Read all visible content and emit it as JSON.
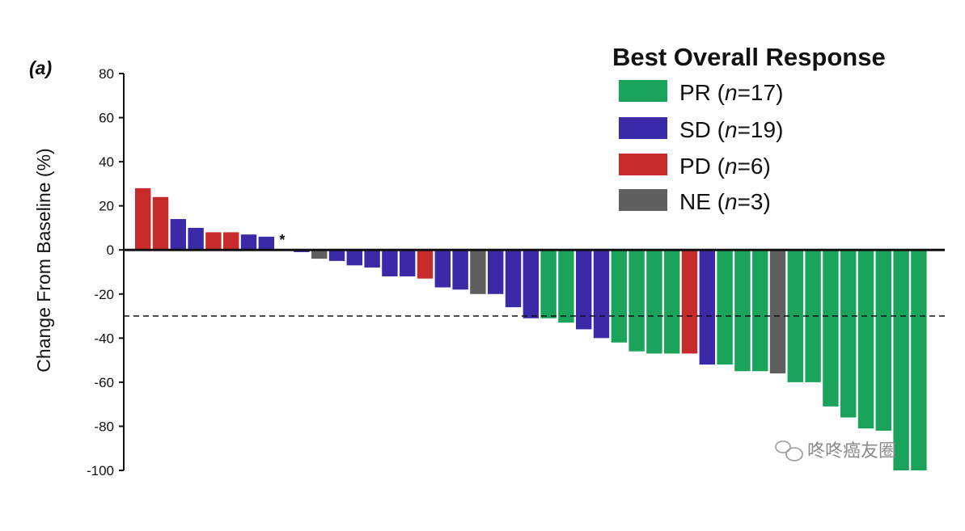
{
  "chart_data": {
    "type": "bar",
    "panel_label": "(a)",
    "ylabel": "Change From Baseline (%)",
    "xlabel": "",
    "ylim": [
      -100,
      80
    ],
    "yticks": [
      80,
      60,
      40,
      20,
      0,
      -20,
      -40,
      -60,
      -80,
      -100
    ],
    "reference_line": -30,
    "star_annotation": "*",
    "star_after_index": 7,
    "legend": {
      "title": "Best Overall Response",
      "entries": [
        {
          "key": "PR",
          "label": "PR (n=17)",
          "prefix": "PR (",
          "n": "n",
          "suffix": "=17)"
        },
        {
          "key": "SD",
          "label": "SD (n=19)",
          "prefix": "SD (",
          "n": "n",
          "suffix": "=19)"
        },
        {
          "key": "PD",
          "label": "PD (n=6)",
          "prefix": "PD (",
          "n": "n",
          "suffix": "=6)"
        },
        {
          "key": "NE",
          "label": "NE (n=3)",
          "prefix": "NE (",
          "n": "n",
          "suffix": "=3)"
        }
      ]
    },
    "colors": {
      "PR": "#1aa35a",
      "SD": "#3b2aa8",
      "PD": "#c62a2a",
      "NE": "#5f5f5f"
    },
    "bars": [
      {
        "response": "PD",
        "value": 28
      },
      {
        "response": "PD",
        "value": 24
      },
      {
        "response": "SD",
        "value": 14
      },
      {
        "response": "SD",
        "value": 10
      },
      {
        "response": "PD",
        "value": 8
      },
      {
        "response": "PD",
        "value": 8
      },
      {
        "response": "SD",
        "value": 7
      },
      {
        "response": "SD",
        "value": 6
      },
      {
        "response": "SD",
        "value": 0
      },
      {
        "response": "SD",
        "value": -1
      },
      {
        "response": "NE",
        "value": -4
      },
      {
        "response": "SD",
        "value": -5
      },
      {
        "response": "SD",
        "value": -7
      },
      {
        "response": "SD",
        "value": -8
      },
      {
        "response": "SD",
        "value": -12
      },
      {
        "response": "SD",
        "value": -12
      },
      {
        "response": "PD",
        "value": -13
      },
      {
        "response": "SD",
        "value": -17
      },
      {
        "response": "SD",
        "value": -18
      },
      {
        "response": "NE",
        "value": -20
      },
      {
        "response": "SD",
        "value": -20
      },
      {
        "response": "SD",
        "value": -26
      },
      {
        "response": "SD",
        "value": -31
      },
      {
        "response": "PR",
        "value": -31
      },
      {
        "response": "PR",
        "value": -33
      },
      {
        "response": "SD",
        "value": -36
      },
      {
        "response": "SD",
        "value": -40
      },
      {
        "response": "PR",
        "value": -42
      },
      {
        "response": "PR",
        "value": -46
      },
      {
        "response": "PR",
        "value": -47
      },
      {
        "response": "PR",
        "value": -47
      },
      {
        "response": "PD",
        "value": -47
      },
      {
        "response": "SD",
        "value": -52
      },
      {
        "response": "PR",
        "value": -52
      },
      {
        "response": "PR",
        "value": -55
      },
      {
        "response": "PR",
        "value": -55
      },
      {
        "response": "NE",
        "value": -56
      },
      {
        "response": "PR",
        "value": -60
      },
      {
        "response": "PR",
        "value": -60
      },
      {
        "response": "PR",
        "value": -71
      },
      {
        "response": "PR",
        "value": -76
      },
      {
        "response": "PR",
        "value": -81
      },
      {
        "response": "PR",
        "value": -82
      },
      {
        "response": "PR",
        "value": -100
      },
      {
        "response": "PR",
        "value": -100
      }
    ]
  },
  "watermark": {
    "text": "咚咚癌友圈",
    "icon": "wechat-icon"
  }
}
